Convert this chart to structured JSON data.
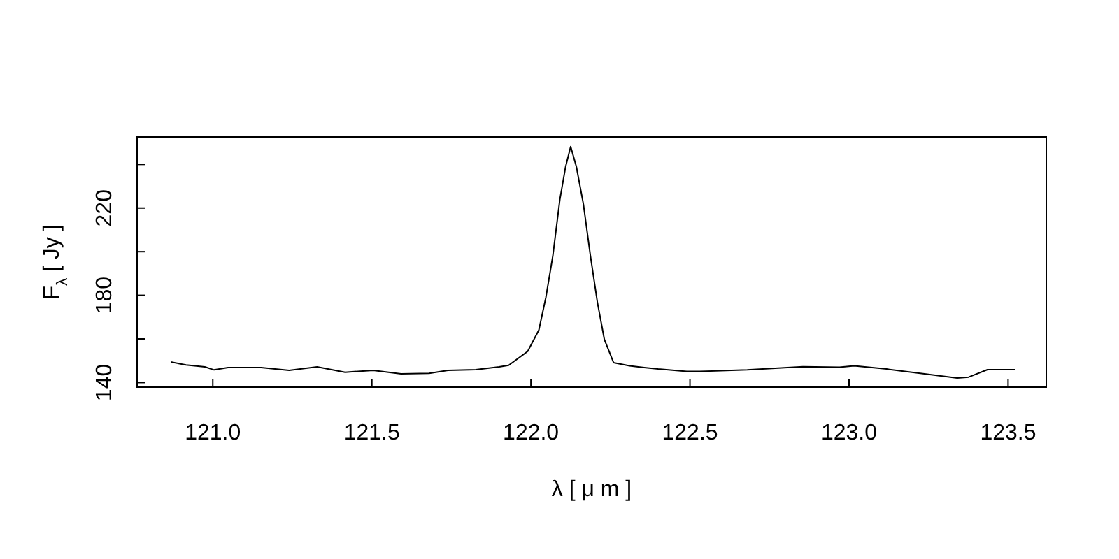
{
  "chart_data": {
    "type": "line",
    "xlabel": "λ [ μ m ]",
    "ylabel": "F$_{λ}$ [ Jy ]",
    "xlim": [
      120.762,
      123.62
    ],
    "ylim": [
      137.9,
      252.6
    ],
    "xticks": [
      {
        "value": 121,
        "label": "121.0"
      },
      {
        "value": 121.5,
        "label": "121.5"
      },
      {
        "value": 122,
        "label": "122.0"
      },
      {
        "value": 122.5,
        "label": "122.5"
      },
      {
        "value": 123,
        "label": "123.0"
      },
      {
        "value": 123.5,
        "label": "123.5"
      }
    ],
    "yticks": [
      140,
      {
        "value": 160,
        "label": null
      },
      180,
      {
        "value": 200,
        "label": null
      },
      220,
      {
        "value": 240,
        "label": null
      }
    ],
    "grid": false,
    "marker": "none",
    "line_style": "solid",
    "series": [
      {
        "color": "#000000",
        "x": [
          120.868,
          120.916,
          120.975,
          121.004,
          121.048,
          121.152,
          121.24,
          121.328,
          121.416,
          121.504,
          121.592,
          121.68,
          121.739,
          121.827,
          121.9,
          121.93,
          121.99,
          122.025,
          122.047,
          122.069,
          122.091,
          122.109,
          122.125,
          122.143,
          122.165,
          122.187,
          122.209,
          122.231,
          122.26,
          122.31,
          122.356,
          122.4,
          122.49,
          122.53,
          122.68,
          122.855,
          122.97,
          123.016,
          123.118,
          123.237,
          123.34,
          123.376,
          123.435,
          123.523
        ],
        "values": [
          149.4,
          148.1,
          147.2,
          145.8,
          146.9,
          146.9,
          145.6,
          147.2,
          144.7,
          145.6,
          144.0,
          144.2,
          145.6,
          145.9,
          147.2,
          147.9,
          154.3,
          164.1,
          179.0,
          198.2,
          223.9,
          238.9,
          248.2,
          238.9,
          221.8,
          198.2,
          176.8,
          159.7,
          149.1,
          147.7,
          146.9,
          146.2,
          145.1,
          145.1,
          145.8,
          147.3,
          147.0,
          147.7,
          146.2,
          144.0,
          142.1,
          142.5,
          145.9,
          145.9
        ]
      }
    ]
  }
}
